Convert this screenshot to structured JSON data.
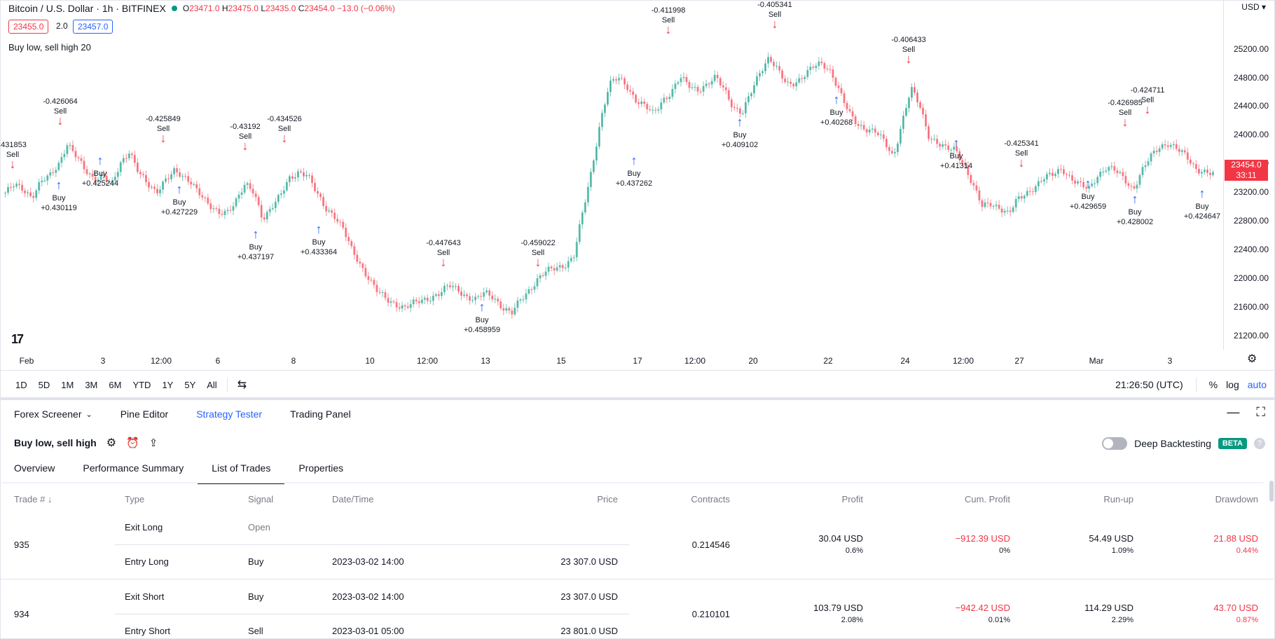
{
  "header": {
    "symbol": "Bitcoin / U.S. Dollar · 1h · BITFINEX",
    "ohlc": {
      "o": "23471.0",
      "h": "23475.0",
      "l": "23435.0",
      "c": "23454.0",
      "chg": "−13.0 (−0.06%)"
    },
    "bid": "23455.0",
    "spread": "2.0",
    "ask": "23457.0",
    "indicator": "Buy low, sell high 20",
    "currency": "USD"
  },
  "price_axis": [
    "25200.00",
    "24800.00",
    "24400.00",
    "24000.00",
    "23600.00",
    "23200.00",
    "22800.00",
    "22400.00",
    "22000.00",
    "21600.00",
    "21200.00"
  ],
  "current_price": {
    "price": "23454.0",
    "timer": "33:11"
  },
  "time_axis": [
    "Feb",
    "3",
    "12:00",
    "6",
    "8",
    "10",
    "12:00",
    "13",
    "15",
    "17",
    "12:00",
    "20",
    "22",
    "24",
    "12:00",
    "27",
    "Mar",
    "3"
  ],
  "colors": {
    "up": "#089981",
    "down": "#f23645",
    "buy": "#2962ff",
    "sell": "#f23645"
  },
  "chart_data": {
    "type": "candlestick",
    "ylim": [
      21000,
      25500
    ],
    "close_path": [
      23200,
      23300,
      23250,
      23150,
      23350,
      23420,
      23600,
      23900,
      23700,
      23500,
      23400,
      23450,
      23300,
      23600,
      23800,
      23500,
      23300,
      23200,
      23400,
      23500,
      23400,
      23350,
      23200,
      23000,
      22900,
      22950,
      23100,
      23300,
      23200,
      22850,
      23000,
      23150,
      23400,
      23500,
      23450,
      23200,
      23000,
      22900,
      22700,
      22400,
      22200,
      22000,
      21800,
      21700,
      21650,
      21600,
      21650,
      21700,
      21750,
      21800,
      21900,
      21850,
      21750,
      21700,
      21800,
      21750,
      21600,
      21500,
      21700,
      21850,
      22000,
      22100,
      22150,
      22200,
      22300,
      22900,
      23500,
      24200,
      24700,
      24800,
      24700,
      24500,
      24400,
      24300,
      24500,
      24600,
      24800,
      24700,
      24650,
      24700,
      24800,
      24650,
      24400,
      24300,
      24600,
      24900,
      25100,
      24900,
      24700,
      24750,
      24850,
      24950,
      25000,
      24900,
      24600,
      24300,
      24150,
      24100,
      24050,
      23900,
      23700,
      24200,
      24650,
      24400,
      24000,
      23900,
      23800,
      23800,
      23600,
      23300,
      23000,
      23050,
      23000,
      22900,
      23100,
      23200,
      23300,
      23400,
      23450,
      23550,
      23400,
      23300,
      23250,
      23450,
      23550,
      23500,
      23400,
      23250,
      23500,
      23700,
      23850,
      23900,
      23800,
      23700,
      23550,
      23500,
      23450
    ],
    "signals": [
      {
        "side": "sell",
        "label": "Sell",
        "value": ".431853"
      },
      {
        "side": "sell",
        "label": "Sell",
        "value": "-0.426064"
      },
      {
        "side": "buy",
        "label": "Buy",
        "value": "+0.430119"
      },
      {
        "side": "buy",
        "label": "Buy",
        "value": "+0.425244"
      },
      {
        "side": "sell",
        "label": "Sell",
        "value": "-0.425849"
      },
      {
        "side": "buy",
        "label": "Buy",
        "value": "+0.427229"
      },
      {
        "side": "sell",
        "label": "Sell",
        "value": "-0.43192"
      },
      {
        "side": "buy",
        "label": "Buy",
        "value": "+0.437197"
      },
      {
        "side": "sell",
        "label": "Sell",
        "value": "-0.434526"
      },
      {
        "side": "buy",
        "label": "Buy",
        "value": "+0.433364"
      },
      {
        "side": "sell",
        "label": "Sell",
        "value": "-0.447643"
      },
      {
        "side": "buy",
        "label": "Buy",
        "value": "+0.458959"
      },
      {
        "side": "sell",
        "label": "Sell",
        "value": "-0.459022"
      },
      {
        "side": "buy",
        "label": "Buy",
        "value": "+0.437262"
      },
      {
        "side": "sell",
        "label": "Sell",
        "value": "-0.411998"
      },
      {
        "side": "buy",
        "label": "Buy",
        "value": "+0.409102"
      },
      {
        "side": "sell",
        "label": "Sell",
        "value": "-0.405341"
      },
      {
        "side": "buy",
        "label": "Buy",
        "value": "+0.40268"
      },
      {
        "side": "sell",
        "label": "Sell",
        "value": "-0.406433"
      },
      {
        "side": "buy",
        "label": "Buy",
        "value": "+0.41314"
      },
      {
        "side": "sell",
        "label": "Sell",
        "value": "-0.425341"
      },
      {
        "side": "buy",
        "label": "Buy",
        "value": "+0.429659"
      },
      {
        "side": "sell",
        "label": "Sell",
        "value": "-0.426985"
      },
      {
        "side": "sell",
        "label": "Sell",
        "value": "-0.424711"
      },
      {
        "side": "buy",
        "label": "Buy",
        "value": "+0.428002"
      },
      {
        "side": "buy",
        "label": "Buy",
        "value": "+0.424647"
      }
    ]
  },
  "toolbar": {
    "ranges": [
      "1D",
      "5D",
      "1M",
      "3M",
      "6M",
      "YTD",
      "1Y",
      "5Y",
      "All"
    ],
    "clock": "21:26:50 (UTC)",
    "percent": "%",
    "log": "log",
    "auto": "auto"
  },
  "panel": {
    "tabs": [
      "Forex Screener",
      "Pine Editor",
      "Strategy Tester",
      "Trading Panel"
    ],
    "strategy_name": "Buy low, sell high",
    "deep_backtesting": "Deep Backtesting",
    "beta": "BETA",
    "help": "?",
    "sub_tabs": [
      "Overview",
      "Performance Summary",
      "List of Trades",
      "Properties"
    ]
  },
  "trades": {
    "headers": [
      "Trade # ↓",
      "Type",
      "Signal",
      "Date/Time",
      "Price",
      "Contracts",
      "Profit",
      "Cum. Profit",
      "Run-up",
      "Drawdown"
    ],
    "rows": [
      {
        "num": "935",
        "contracts": "0.214546",
        "profit": "30.04 USD",
        "profit_pct": "0.6%",
        "cum": "−912.39 USD",
        "cum_pct": "0%",
        "runup": "54.49 USD",
        "runup_pct": "1.09%",
        "dd": "21.88 USD",
        "dd_pct": "0.44%",
        "exit": {
          "type": "Exit Long",
          "signal": "Open",
          "date": "",
          "price": ""
        },
        "entry": {
          "type": "Entry Long",
          "signal": "Buy",
          "date": "2023-03-02 14:00",
          "price": "23 307.0 USD"
        }
      },
      {
        "num": "934",
        "contracts": "0.210101",
        "profit": "103.79 USD",
        "profit_pct": "2.08%",
        "cum": "−942.42 USD",
        "cum_pct": "0.01%",
        "runup": "114.29 USD",
        "runup_pct": "2.29%",
        "dd": "43.70 USD",
        "dd_pct": "0.87%",
        "exit": {
          "type": "Exit Short",
          "signal": "Buy",
          "date": "2023-03-02 14:00",
          "price": "23 307.0 USD"
        },
        "entry": {
          "type": "Entry Short",
          "signal": "Sell",
          "date": "2023-03-01 05:00",
          "price": "23 801.0 USD"
        }
      }
    ]
  }
}
